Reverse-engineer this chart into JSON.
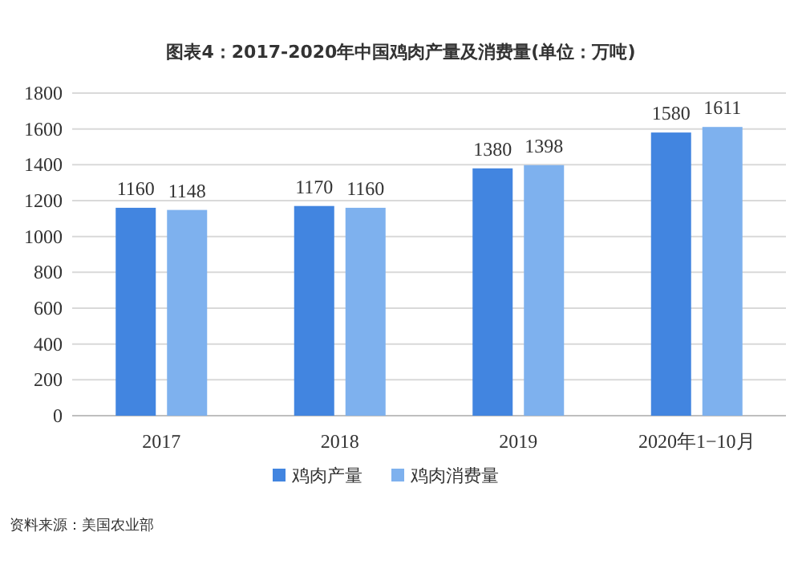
{
  "chart_data": {
    "type": "bar",
    "title": "图表4：2017-2020年中国鸡肉产量及消费量(单位：万吨)",
    "categories": [
      "2017",
      "2018",
      "2019",
      "2020年1−10月"
    ],
    "series": [
      {
        "name": "鸡肉产量",
        "color": "#4285e0",
        "values": [
          1160,
          1170,
          1380,
          1580
        ]
      },
      {
        "name": "鸡肉消费量",
        "color": "#7eb1ee",
        "values": [
          1148,
          1160,
          1398,
          1611
        ]
      }
    ],
    "ylim": [
      0,
      1800
    ],
    "yticks": [
      0,
      200,
      400,
      600,
      800,
      1000,
      1200,
      1400,
      1600,
      1800
    ],
    "grid": "y",
    "legend": "bottom",
    "data_labels": true,
    "annotations": [
      "资料来源：美国农业部"
    ]
  }
}
